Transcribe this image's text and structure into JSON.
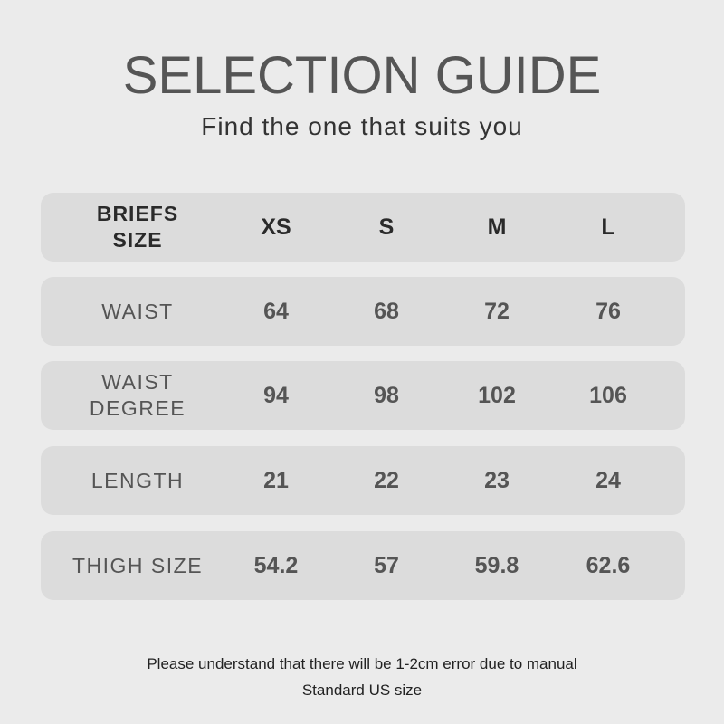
{
  "title": "SELECTION GUIDE",
  "subtitle": "Find the one that suits you",
  "table": {
    "header": {
      "label": "BRIEFS SIZE",
      "sizes": [
        "XS",
        "S",
        "M",
        "L"
      ]
    },
    "rows": [
      {
        "label": "WAIST",
        "values": [
          "64",
          "68",
          "72",
          "76"
        ]
      },
      {
        "label": "WAIST DEGREE",
        "values": [
          "94",
          "98",
          "102",
          "106"
        ]
      },
      {
        "label": "LENGTH",
        "values": [
          "21",
          "22",
          "23",
          "24"
        ]
      },
      {
        "label": "THIGH SIZE",
        "values": [
          "54.2",
          "57",
          "59.8",
          "62.6"
        ]
      }
    ]
  },
  "notes": [
    "Please understand that there will be 1-2cm error due to manual",
    "Standard US size"
  ]
}
